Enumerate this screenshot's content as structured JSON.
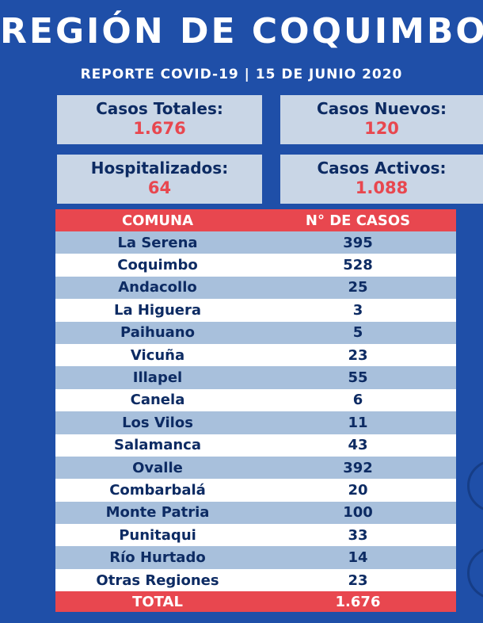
{
  "header": {
    "title": "REGIÓN DE COQUIMBO",
    "subtitle": "REPORTE COVID-19 | 15 DE JUNIO 2020"
  },
  "cards": [
    {
      "label": "Casos Totales:",
      "value": "1.676"
    },
    {
      "label": "Casos Nuevos:",
      "value": "120"
    },
    {
      "label": "Hospitalizados:",
      "value": "64"
    },
    {
      "label": "Casos Activos:",
      "value": "1.088"
    }
  ],
  "table": {
    "headers": [
      "COMUNA",
      "N° DE CASOS"
    ],
    "rows": [
      {
        "comuna": "La Serena",
        "casos": "395"
      },
      {
        "comuna": "Coquimbo",
        "casos": "528"
      },
      {
        "comuna": "Andacollo",
        "casos": "25"
      },
      {
        "comuna": "La Higuera",
        "casos": "3"
      },
      {
        "comuna": "Paihuano",
        "casos": "5"
      },
      {
        "comuna": "Vicuña",
        "casos": "23"
      },
      {
        "comuna": "Illapel",
        "casos": "55"
      },
      {
        "comuna": "Canela",
        "casos": "6"
      },
      {
        "comuna": "Los Vilos",
        "casos": "11"
      },
      {
        "comuna": "Salamanca",
        "casos": "43"
      },
      {
        "comuna": "Ovalle",
        "casos": "392"
      },
      {
        "comuna": "Combarbalá",
        "casos": "20"
      },
      {
        "comuna": "Monte Patria",
        "casos": "100"
      },
      {
        "comuna": "Punitaqui",
        "casos": "33"
      },
      {
        "comuna": "Río Hurtado",
        "casos": "14"
      },
      {
        "comuna": "Otras Regiones",
        "casos": "23"
      }
    ],
    "total": {
      "label": "TOTAL",
      "value": "1.676"
    }
  },
  "colors": {
    "background": "#1f4fa8",
    "accent": "#e8474f",
    "card": "#c9d6e6",
    "text_dark": "#0d2b63"
  }
}
